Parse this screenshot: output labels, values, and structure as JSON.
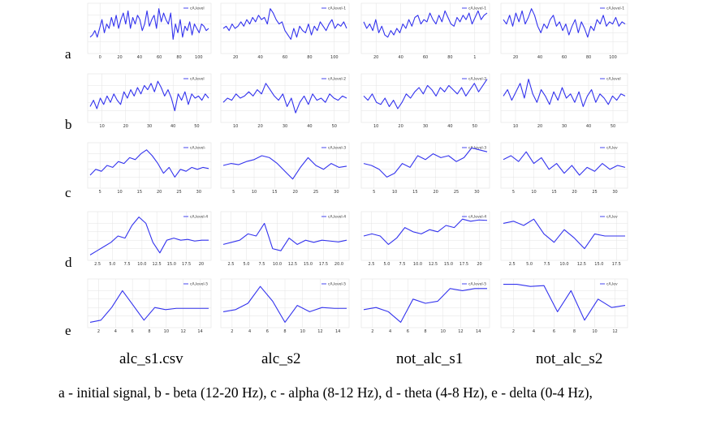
{
  "row_labels": [
    "a",
    "b",
    "c",
    "d",
    "e"
  ],
  "column_labels": [
    "alc_s1.csv",
    "alc_s2",
    "not_alc_s1",
    "not_alc_s2"
  ],
  "caption": "a - initial signal, b - beta (12-20 Hz), c - alpha (8-12 Hz), d - theta (4-8 Hz), e - delta (0-4 Hz),",
  "colors": {
    "line": "#3333ee",
    "grid": "#e3e3e3",
    "axis": "#555555",
    "background": "#ffffff"
  },
  "chart_data": [
    {
      "type": "line",
      "row": "a",
      "column": "alc_s1.csv",
      "legend": "cA,level",
      "xticks": [
        "0",
        "20",
        "40",
        "60",
        "80",
        "100"
      ],
      "xlim": [
        0,
        100
      ],
      "ylim": [
        0,
        1
      ],
      "series": [
        {
          "name": "cA,level",
          "values": [
            0.3,
            0.35,
            0.45,
            0.3,
            0.5,
            0.7,
            0.4,
            0.6,
            0.5,
            0.75,
            0.55,
            0.8,
            0.5,
            0.7,
            0.85,
            0.6,
            0.9,
            0.5,
            0.75,
            0.6,
            0.8,
            0.7,
            0.45,
            0.6,
            0.9,
            0.55,
            0.7,
            0.8,
            0.5,
            0.95,
            0.65,
            0.85,
            0.7,
            0.6,
            0.85,
            0.25,
            0.6,
            0.4,
            0.7,
            0.3,
            0.55,
            0.45,
            0.65,
            0.35,
            0.6,
            0.5,
            0.4,
            0.6,
            0.55,
            0.45,
            0.5
          ]
        }
      ]
    },
    {
      "type": "line",
      "row": "a",
      "column": "alc_s2",
      "legend": "cA,level-1",
      "xticks": [
        "20",
        "40",
        "60",
        "80",
        "100"
      ],
      "xlim": [
        0,
        110
      ],
      "ylim": [
        0,
        1
      ],
      "series": [
        {
          "name": "cA,level-1",
          "values": [
            0.5,
            0.55,
            0.45,
            0.6,
            0.5,
            0.55,
            0.65,
            0.55,
            0.7,
            0.6,
            0.75,
            0.65,
            0.8,
            0.7,
            0.75,
            0.6,
            0.95,
            0.85,
            0.7,
            0.6,
            0.65,
            0.45,
            0.35,
            0.25,
            0.5,
            0.3,
            0.55,
            0.45,
            0.4,
            0.6,
            0.35,
            0.55,
            0.45,
            0.65,
            0.55,
            0.45,
            0.6,
            0.7,
            0.5,
            0.6,
            0.55,
            0.65,
            0.5
          ]
        }
      ]
    },
    {
      "type": "line",
      "row": "a",
      "column": "not_alc_s1",
      "legend": "cA,level-1",
      "xticks": [
        "20",
        "40",
        "60",
        "80",
        "1"
      ],
      "xlim": [
        0,
        110
      ],
      "ylim": [
        0,
        1
      ],
      "series": [
        {
          "name": "cA,level-1",
          "values": [
            0.65,
            0.5,
            0.6,
            0.45,
            0.7,
            0.4,
            0.55,
            0.35,
            0.3,
            0.45,
            0.35,
            0.5,
            0.4,
            0.6,
            0.5,
            0.7,
            0.55,
            0.75,
            0.8,
            0.6,
            0.7,
            0.65,
            0.85,
            0.7,
            0.6,
            0.8,
            0.65,
            0.9,
            0.75,
            0.6,
            0.55,
            0.75,
            0.65,
            0.8,
            0.7,
            0.85,
            0.6,
            0.75,
            0.9,
            0.7,
            0.8,
            0.85
          ]
        }
      ]
    },
    {
      "type": "line",
      "row": "a",
      "column": "not_alc_s2",
      "legend": "cA,level-1",
      "xticks": [
        "20",
        "40",
        "60",
        "80",
        "100"
      ],
      "xlim": [
        0,
        110
      ],
      "ylim": [
        0,
        1
      ],
      "series": [
        {
          "name": "cA,level-1",
          "values": [
            0.7,
            0.6,
            0.8,
            0.55,
            0.85,
            0.65,
            0.9,
            0.6,
            0.75,
            0.95,
            0.8,
            0.55,
            0.4,
            0.6,
            0.5,
            0.7,
            0.8,
            0.55,
            0.65,
            0.45,
            0.6,
            0.35,
            0.55,
            0.7,
            0.4,
            0.65,
            0.5,
            0.3,
            0.55,
            0.45,
            0.7,
            0.6,
            0.8,
            0.55,
            0.65,
            0.6,
            0.75,
            0.55,
            0.65,
            0.6
          ]
        }
      ]
    },
    {
      "type": "line",
      "row": "b",
      "column": "alc_s1.csv",
      "legend": "cA,level",
      "xticks": [
        "10",
        "20",
        "30",
        "40",
        "50"
      ],
      "xlim": [
        0,
        55
      ],
      "ylim": [
        0,
        1
      ],
      "series": [
        {
          "name": "cA,level",
          "values": [
            0.3,
            0.45,
            0.25,
            0.5,
            0.35,
            0.55,
            0.4,
            0.6,
            0.45,
            0.35,
            0.65,
            0.5,
            0.7,
            0.55,
            0.75,
            0.6,
            0.8,
            0.7,
            0.85,
            0.65,
            0.9,
            0.75,
            0.55,
            0.7,
            0.5,
            0.2,
            0.6,
            0.45,
            0.65,
            0.35,
            0.6,
            0.5,
            0.55,
            0.45,
            0.6,
            0.5
          ]
        }
      ]
    },
    {
      "type": "line",
      "row": "b",
      "column": "alc_s2",
      "legend": "cA,level-2",
      "xticks": [
        "10",
        "20",
        "30",
        "40",
        "50"
      ],
      "xlim": [
        0,
        56
      ],
      "ylim": [
        0,
        1
      ],
      "series": [
        {
          "name": "cA,level-2",
          "values": [
            0.4,
            0.5,
            0.45,
            0.6,
            0.5,
            0.55,
            0.65,
            0.55,
            0.7,
            0.6,
            0.85,
            0.7,
            0.55,
            0.45,
            0.6,
            0.3,
            0.5,
            0.15,
            0.4,
            0.55,
            0.35,
            0.6,
            0.45,
            0.5,
            0.4,
            0.6,
            0.5,
            0.45,
            0.55,
            0.5
          ]
        }
      ]
    },
    {
      "type": "line",
      "row": "b",
      "column": "not_alc_s1",
      "legend": "cA,level-2",
      "xticks": [
        "10",
        "20",
        "30",
        "40",
        "50"
      ],
      "xlim": [
        0,
        55
      ],
      "ylim": [
        0,
        1
      ],
      "series": [
        {
          "name": "cA,level-2",
          "values": [
            0.55,
            0.45,
            0.6,
            0.4,
            0.35,
            0.5,
            0.3,
            0.45,
            0.25,
            0.4,
            0.6,
            0.5,
            0.65,
            0.75,
            0.6,
            0.8,
            0.7,
            0.55,
            0.75,
            0.65,
            0.8,
            0.7,
            0.6,
            0.75,
            0.55,
            0.7,
            0.85,
            0.65,
            0.8,
            0.95
          ]
        }
      ]
    },
    {
      "type": "line",
      "row": "b",
      "column": "not_alc_s2",
      "legend": "cA,level",
      "xticks": [
        "10",
        "20",
        "30",
        "40",
        "50"
      ],
      "xlim": [
        0,
        55
      ],
      "ylim": [
        0,
        1
      ],
      "series": [
        {
          "name": "cA,level",
          "values": [
            0.55,
            0.7,
            0.45,
            0.65,
            0.85,
            0.5,
            0.95,
            0.6,
            0.4,
            0.7,
            0.55,
            0.35,
            0.65,
            0.45,
            0.75,
            0.5,
            0.6,
            0.4,
            0.65,
            0.3,
            0.55,
            0.7,
            0.4,
            0.6,
            0.5,
            0.35,
            0.55,
            0.45,
            0.6,
            0.55
          ]
        }
      ]
    },
    {
      "type": "line",
      "row": "c",
      "column": "alc_s1.csv",
      "legend": "cA,level-",
      "xticks": [
        "5",
        "10",
        "15",
        "20",
        "25",
        "30"
      ],
      "xlim": [
        0,
        32
      ],
      "ylim": [
        0,
        1
      ],
      "series": [
        {
          "name": "cA,level-",
          "values": [
            0.25,
            0.4,
            0.35,
            0.5,
            0.45,
            0.6,
            0.55,
            0.7,
            0.65,
            0.8,
            0.9,
            0.75,
            0.55,
            0.3,
            0.45,
            0.2,
            0.4,
            0.35,
            0.45,
            0.4,
            0.45,
            0.42
          ]
        }
      ]
    },
    {
      "type": "line",
      "row": "c",
      "column": "alc_s2",
      "legend": "cA,level-3",
      "xticks": [
        "5",
        "10",
        "15",
        "20",
        "25",
        "30"
      ],
      "xlim": [
        0,
        32
      ],
      "ylim": [
        0,
        1
      ],
      "series": [
        {
          "name": "cA,level-3",
          "values": [
            0.5,
            0.55,
            0.52,
            0.6,
            0.65,
            0.75,
            0.7,
            0.55,
            0.35,
            0.15,
            0.45,
            0.7,
            0.5,
            0.4,
            0.55,
            0.45,
            0.48
          ]
        }
      ]
    },
    {
      "type": "line",
      "row": "c",
      "column": "not_alc_s1",
      "legend": "cA,level-3",
      "xticks": [
        "5",
        "10",
        "15",
        "20",
        "25",
        "30"
      ],
      "xlim": [
        0,
        32
      ],
      "ylim": [
        0,
        1
      ],
      "series": [
        {
          "name": "cA,level-3",
          "values": [
            0.55,
            0.5,
            0.4,
            0.2,
            0.3,
            0.55,
            0.45,
            0.75,
            0.65,
            0.8,
            0.7,
            0.75,
            0.6,
            0.7,
            0.95,
            0.9,
            0.85
          ]
        }
      ]
    },
    {
      "type": "line",
      "row": "c",
      "column": "not_alc_s2",
      "legend": "cA,lev",
      "xticks": [
        "5",
        "10",
        "15",
        "20",
        "25",
        "30"
      ],
      "xlim": [
        0,
        32
      ],
      "ylim": [
        0,
        1
      ],
      "series": [
        {
          "name": "cA,lev",
          "values": [
            0.65,
            0.75,
            0.6,
            0.85,
            0.55,
            0.7,
            0.4,
            0.55,
            0.3,
            0.5,
            0.25,
            0.45,
            0.35,
            0.55,
            0.4,
            0.5,
            0.45
          ]
        }
      ]
    },
    {
      "type": "line",
      "row": "d",
      "column": "alc_s1.csv",
      "legend": "cA,level-4",
      "xticks": [
        "2.5",
        "5.0",
        "7.5",
        "10.0",
        "12.5",
        "15.0",
        "17.5",
        "20"
      ],
      "xlim": [
        0,
        21
      ],
      "ylim": [
        0,
        1
      ],
      "series": [
        {
          "name": "cA,level-4",
          "values": [
            0.05,
            0.15,
            0.25,
            0.35,
            0.5,
            0.45,
            0.75,
            0.95,
            0.8,
            0.35,
            0.1,
            0.4,
            0.45,
            0.4,
            0.42,
            0.38,
            0.4,
            0.4
          ]
        }
      ]
    },
    {
      "type": "line",
      "row": "d",
      "column": "alc_s2",
      "legend": "cA,level-4",
      "xticks": [
        "2.5",
        "5.0",
        "7.5",
        "10.0",
        "12.5",
        "15.0",
        "17.5",
        "20.0"
      ],
      "xlim": [
        0,
        21
      ],
      "ylim": [
        0,
        1
      ],
      "series": [
        {
          "name": "cA,level-4",
          "values": [
            0.3,
            0.35,
            0.4,
            0.55,
            0.5,
            0.8,
            0.2,
            0.15,
            0.45,
            0.3,
            0.4,
            0.35,
            0.4,
            0.38,
            0.36,
            0.4
          ]
        }
      ]
    },
    {
      "type": "line",
      "row": "d",
      "column": "not_alc_s1",
      "legend": "cA,level-4",
      "xticks": [
        "2.5",
        "5.0",
        "7.5",
        "10.0",
        "12.5",
        "15.0",
        "17.5",
        "20"
      ],
      "xlim": [
        0,
        21
      ],
      "ylim": [
        0,
        1
      ],
      "series": [
        {
          "name": "cA,level-4",
          "values": [
            0.5,
            0.55,
            0.5,
            0.3,
            0.45,
            0.7,
            0.6,
            0.55,
            0.65,
            0.6,
            0.75,
            0.7,
            0.9,
            0.85,
            0.88,
            0.87
          ]
        }
      ]
    },
    {
      "type": "line",
      "row": "d",
      "column": "not_alc_s2",
      "legend": "cA,lev",
      "xticks": [
        "2.5",
        "5.0",
        "7.5",
        "10.0",
        "12.5",
        "15.0",
        "17.5"
      ],
      "xlim": [
        0,
        19
      ],
      "ylim": [
        0,
        1
      ],
      "series": [
        {
          "name": "cA,lev",
          "values": [
            0.8,
            0.85,
            0.75,
            0.9,
            0.55,
            0.35,
            0.65,
            0.45,
            0.2,
            0.55,
            0.5,
            0.5,
            0.5
          ]
        }
      ]
    },
    {
      "type": "line",
      "row": "e",
      "column": "alc_s1.csv",
      "legend": "cA,level-5",
      "xticks": [
        "2",
        "4",
        "6",
        "8",
        "10",
        "12",
        "14"
      ],
      "xlim": [
        0,
        15
      ],
      "ylim": [
        0,
        1
      ],
      "series": [
        {
          "name": "cA,level-5",
          "values": [
            0.05,
            0.1,
            0.4,
            0.8,
            0.45,
            0.1,
            0.4,
            0.35,
            0.38,
            0.38,
            0.38,
            0.38
          ]
        }
      ]
    },
    {
      "type": "line",
      "row": "e",
      "column": "alc_s2",
      "legend": "cA,level-5",
      "xticks": [
        "2",
        "4",
        "6",
        "8",
        "10",
        "12",
        "14"
      ],
      "xlim": [
        0,
        15
      ],
      "ylim": [
        0,
        1
      ],
      "series": [
        {
          "name": "cA,level-5",
          "values": [
            0.3,
            0.35,
            0.5,
            0.9,
            0.55,
            0.05,
            0.45,
            0.3,
            0.4,
            0.38,
            0.38
          ]
        }
      ]
    },
    {
      "type": "line",
      "row": "e",
      "column": "not_alc_s1",
      "legend": "cA,level-5",
      "xticks": [
        "2",
        "4",
        "6",
        "8",
        "10",
        "12",
        "14"
      ],
      "xlim": [
        0,
        15
      ],
      "ylim": [
        0,
        1
      ],
      "series": [
        {
          "name": "cA,level-5",
          "values": [
            0.35,
            0.4,
            0.3,
            0.05,
            0.6,
            0.5,
            0.55,
            0.85,
            0.8,
            0.85,
            0.85
          ]
        }
      ]
    },
    {
      "type": "line",
      "row": "e",
      "column": "not_alc_s2",
      "legend": "cA,lev",
      "xticks": [
        "2",
        "4",
        "6",
        "8",
        "10",
        "12"
      ],
      "xlim": [
        0,
        13
      ],
      "ylim": [
        0,
        1
      ],
      "series": [
        {
          "name": "cA,lev",
          "values": [
            0.95,
            0.95,
            0.9,
            0.92,
            0.3,
            0.8,
            0.1,
            0.6,
            0.4,
            0.45
          ]
        }
      ]
    }
  ]
}
